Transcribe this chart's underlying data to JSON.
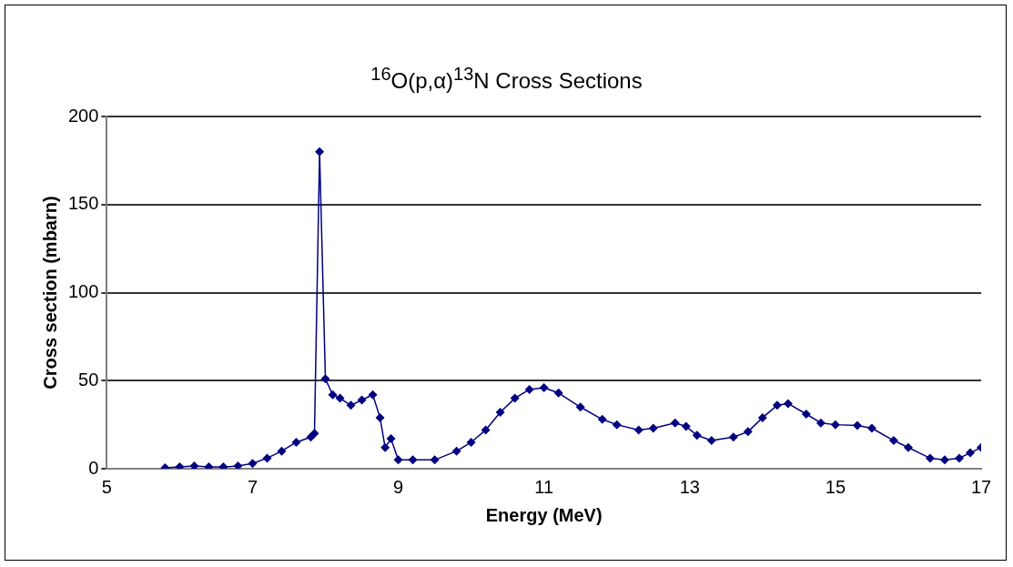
{
  "chart_data": {
    "type": "line",
    "title": "$^{16}$O(p,α)$^{13}$N Cross Sections",
    "xlabel": "Energy (MeV)",
    "ylabel": "Cross section (mbarn)",
    "x": [
      5.8,
      6.0,
      6.2,
      6.4,
      6.6,
      6.8,
      7.0,
      7.2,
      7.4,
      7.6,
      7.8,
      7.85,
      7.92,
      8.0,
      8.1,
      8.2,
      8.35,
      8.5,
      8.65,
      8.75,
      8.82,
      8.9,
      9.0,
      9.2,
      9.5,
      9.8,
      10.0,
      10.2,
      10.4,
      10.6,
      10.8,
      11.0,
      11.2,
      11.5,
      11.8,
      12.0,
      12.3,
      12.5,
      12.8,
      12.95,
      13.1,
      13.3,
      13.6,
      13.8,
      14.0,
      14.2,
      14.35,
      14.6,
      14.8,
      15.0,
      15.3,
      15.5,
      15.8,
      16.0,
      16.3,
      16.5,
      16.7,
      16.85,
      17.0
    ],
    "series": [
      {
        "color": "#000080",
        "values": [
          0.5,
          1,
          1.5,
          1,
          1,
          1.5,
          3,
          6,
          10,
          15,
          18,
          20,
          180,
          51,
          42,
          40,
          36,
          39,
          42,
          29,
          12,
          17,
          5,
          5,
          5,
          10,
          15,
          22,
          32,
          40,
          45,
          46,
          43,
          35,
          28,
          25,
          22,
          23,
          26,
          24,
          19,
          16,
          18,
          21,
          29,
          36,
          37,
          31,
          26,
          25,
          24.5,
          23,
          16,
          12,
          6,
          5,
          6,
          9,
          12
        ]
      }
    ],
    "xlim": [
      5,
      17
    ],
    "xticks": [
      5,
      7,
      9,
      11,
      13,
      15,
      17
    ],
    "ylim": [
      0,
      200
    ],
    "yticks": [
      0,
      50,
      100,
      150,
      200
    ],
    "grid": "y",
    "legend": false,
    "marker": "diamond",
    "line_style": "solid"
  }
}
